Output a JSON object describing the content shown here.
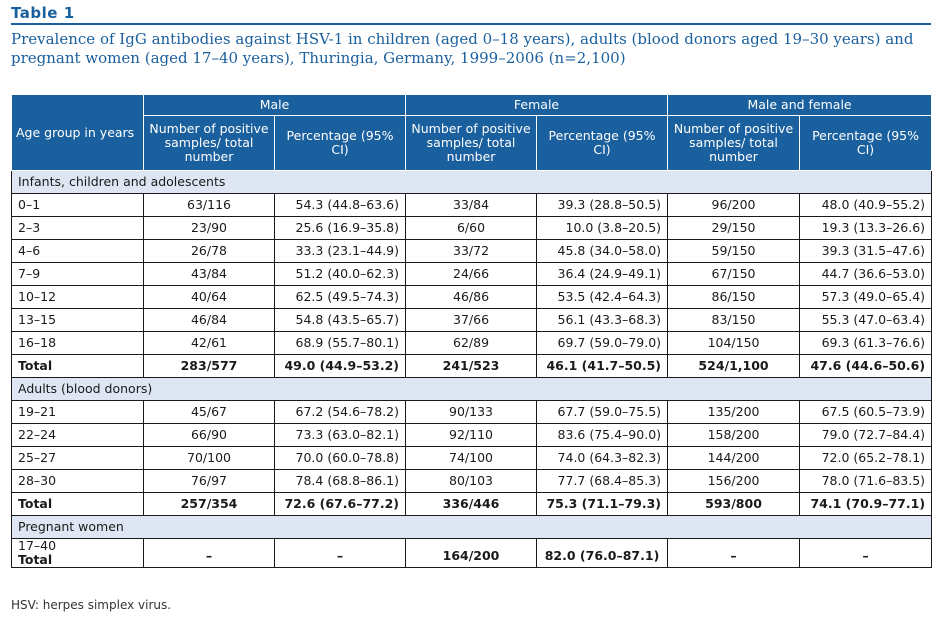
{
  "table_label": "Table 1",
  "title": "Prevalence of IgG antibodies against HSV-1 in children (aged 0–18 years), adults (blood donors aged 19–30 years) and pregnant women (aged 17–40 years), Thuringia, Germany, 1999–2006 (n=2,100)",
  "header": {
    "age_group": "Age group in years",
    "groups": [
      "Male",
      "Female",
      "Male and female"
    ],
    "sub": [
      "Number of positive samples/ total number",
      "Percentage (95% CI)"
    ]
  },
  "sections": [
    {
      "label": "Infants, children and adolescents",
      "rows": [
        [
          "0–1",
          "63/116",
          "54.3 (44.8–63.6)",
          "33/84",
          "39.3 (28.8–50.5)",
          "96/200",
          "48.0 (40.9–55.2)"
        ],
        [
          "2–3",
          "23/90",
          "25.6 (16.9–35.8)",
          "6/60",
          "10.0 (3.8–20.5)",
          "29/150",
          "19.3 (13.3–26.6)"
        ],
        [
          "4–6",
          "26/78",
          "33.3 (23.1–44.9)",
          "33/72",
          "45.8 (34.0–58.0)",
          "59/150",
          "39.3 (31.5–47.6)"
        ],
        [
          "7–9",
          "43/84",
          "51.2 (40.0–62.3)",
          "24/66",
          "36.4 (24.9–49.1)",
          "67/150",
          "44.7 (36.6–53.0)"
        ],
        [
          "10–12",
          "40/64",
          "62.5 (49.5–74.3)",
          "46/86",
          "53.5 (42.4–64.3)",
          "86/150",
          "57.3 (49.0–65.4)"
        ],
        [
          "13–15",
          "46/84",
          "54.8 (43.5–65.7)",
          "37/66",
          "56.1 (43.3–68.3)",
          "83/150",
          "55.3 (47.0–63.4)"
        ],
        [
          "16–18",
          "42/61",
          "68.9 (55.7–80.1)",
          "62/89",
          "69.7 (59.0–79.0)",
          "104/150",
          "69.3 (61.3–76.6)"
        ]
      ],
      "total": [
        "Total",
        "283/577",
        "49.0 (44.9–53.2)",
        "241/523",
        "46.1 (41.7–50.5)",
        "524/1,100",
        "47.6 (44.6–50.6)"
      ]
    },
    {
      "label": "Adults (blood donors)",
      "rows": [
        [
          "19–21",
          "45/67",
          "67.2 (54.6–78.2)",
          "90/133",
          "67.7 (59.0–75.5)",
          "135/200",
          "67.5 (60.5–73.9)"
        ],
        [
          "22–24",
          "66/90",
          "73.3 (63.0–82.1)",
          "92/110",
          "83.6 (75.4–90.0)",
          "158/200",
          "79.0 (72.7–84.4)"
        ],
        [
          "25–27",
          "70/100",
          "70.0 (60.0–78.8)",
          "74/100",
          "74.0 (64.3–82.3)",
          "144/200",
          "72.0 (65.2–78.1)"
        ],
        [
          "28–30",
          "76/97",
          "78.4 (68.8–86.1)",
          "80/103",
          "77.7 (68.4–85.3)",
          "156/200",
          "78.0 (71.6–83.5)"
        ]
      ],
      "total": [
        "Total",
        "257/354",
        "72.6 (67.6–77.2)",
        "336/446",
        "75.3 (71.1–79.3)",
        "593/800",
        "74.1 (70.9–77.1)"
      ]
    },
    {
      "label": "Pregnant women",
      "pregnant": {
        "age": "17–40",
        "total_label": "Total",
        "cells": [
          "–",
          "–",
          "164/200",
          "82.0 (76.0–87.1)",
          "–",
          "–"
        ]
      }
    }
  ],
  "footnote": "HSV: herpes simplex virus.",
  "colors": {
    "accent": "#1a5f9e",
    "section_bg": "#dde6f2"
  }
}
